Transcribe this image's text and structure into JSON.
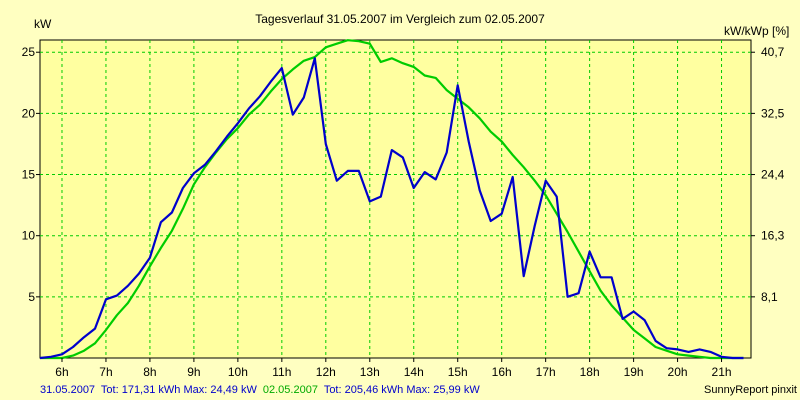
{
  "chart_data": {
    "type": "line",
    "title": "Tagesverlauf 31.05.2007 im Vergleich zum 02.05.2007",
    "ylabel_left": "kW",
    "ylabel_right": "kW/kWp [%]",
    "x_ticks": [
      "6h",
      "7h",
      "8h",
      "9h",
      "10h",
      "11h",
      "12h",
      "13h",
      "14h",
      "15h",
      "16h",
      "17h",
      "18h",
      "19h",
      "20h",
      "21h"
    ],
    "x_tick_values": [
      6,
      7,
      8,
      9,
      10,
      11,
      12,
      13,
      14,
      15,
      16,
      17,
      18,
      19,
      20,
      21
    ],
    "xlim": [
      5.5,
      21.67
    ],
    "y_left_ticks": [
      5,
      10,
      15,
      20,
      25
    ],
    "y_right_tick_labels": [
      "8,1",
      "16,3",
      "24,4",
      "32,5",
      "40,7"
    ],
    "ylim": [
      0,
      26
    ],
    "grid": true,
    "series": [
      {
        "name": "31.05.2007",
        "color": "#0000cc",
        "x": [
          5.5,
          5.75,
          6.0,
          6.25,
          6.5,
          6.75,
          7.0,
          7.25,
          7.5,
          7.75,
          8.0,
          8.25,
          8.5,
          8.75,
          9.0,
          9.25,
          9.5,
          9.75,
          10.0,
          10.25,
          10.5,
          10.75,
          11.0,
          11.25,
          11.5,
          11.75,
          12.0,
          12.25,
          12.5,
          12.75,
          13.0,
          13.25,
          13.5,
          13.75,
          14.0,
          14.25,
          14.5,
          14.75,
          15.0,
          15.25,
          15.5,
          15.75,
          16.0,
          16.25,
          16.5,
          16.75,
          17.0,
          17.25,
          17.5,
          17.75,
          18.0,
          18.25,
          18.5,
          18.75,
          19.0,
          19.25,
          19.5,
          19.75,
          20.0,
          20.25,
          20.5,
          20.75,
          21.0,
          21.25,
          21.5
        ],
        "y": [
          0,
          0.1,
          0.3,
          0.9,
          1.7,
          2.4,
          4.8,
          5.1,
          5.9,
          6.9,
          8.2,
          11.1,
          11.9,
          13.9,
          15.1,
          15.8,
          16.9,
          18.1,
          19.2,
          20.4,
          21.4,
          22.6,
          23.7,
          19.9,
          21.3,
          24.5,
          17.5,
          14.5,
          15.3,
          15.3,
          12.8,
          13.2,
          17.0,
          16.4,
          13.9,
          15.2,
          14.6,
          16.8,
          22.3,
          17.7,
          13.7,
          11.2,
          11.8,
          14.8,
          6.7,
          10.8,
          14.5,
          13.2,
          5.0,
          5.3,
          8.7,
          6.6,
          6.6,
          3.2,
          3.8,
          3.1,
          1.4,
          0.8,
          0.7,
          0.5,
          0.7,
          0.5,
          0.1,
          0,
          0
        ]
      },
      {
        "name": "02.05.2007",
        "color": "#00cc00",
        "x": [
          5.5,
          6.0,
          6.25,
          6.5,
          6.75,
          7.0,
          7.25,
          7.5,
          7.75,
          8.0,
          8.25,
          8.5,
          8.75,
          9.0,
          9.25,
          9.5,
          9.75,
          10.0,
          10.25,
          10.5,
          10.75,
          11.0,
          11.25,
          11.5,
          11.75,
          12.0,
          12.25,
          12.5,
          12.75,
          13.0,
          13.25,
          13.5,
          13.75,
          14.0,
          14.25,
          14.5,
          14.75,
          15.0,
          15.25,
          15.5,
          15.75,
          16.0,
          16.25,
          16.5,
          16.75,
          17.0,
          17.25,
          17.5,
          17.75,
          18.0,
          18.25,
          18.5,
          18.75,
          19.0,
          19.25,
          19.5,
          19.75,
          20.0,
          20.25,
          20.5,
          20.75,
          21.0,
          21.25,
          21.5
        ],
        "y": [
          0,
          0,
          0.2,
          0.6,
          1.2,
          2.3,
          3.5,
          4.5,
          5.9,
          7.5,
          9.0,
          10.4,
          12.2,
          14.2,
          15.6,
          16.8,
          17.9,
          18.8,
          19.9,
          20.7,
          21.8,
          22.8,
          23.6,
          24.3,
          24.6,
          25.4,
          25.7,
          25.98,
          25.9,
          25.7,
          24.2,
          24.5,
          24.1,
          23.8,
          23.1,
          22.9,
          21.9,
          21.2,
          20.5,
          19.6,
          18.5,
          17.7,
          16.6,
          15.6,
          14.5,
          13.3,
          11.8,
          10.3,
          8.7,
          7.1,
          5.5,
          4.3,
          3.3,
          2.3,
          1.6,
          0.9,
          0.6,
          0.3,
          0.2,
          0.1,
          0,
          0,
          0,
          0
        ]
      }
    ],
    "footer_left": {
      "date1": "31.05.2007",
      "stats1": "Tot: 171,31 kWh Max: 24,49 kW",
      "date2": "02.05.2007",
      "stats2": "Tot: 205,46 kWh Max: 25,99 kW"
    },
    "footer_right": "SunnyReport pinxit"
  }
}
